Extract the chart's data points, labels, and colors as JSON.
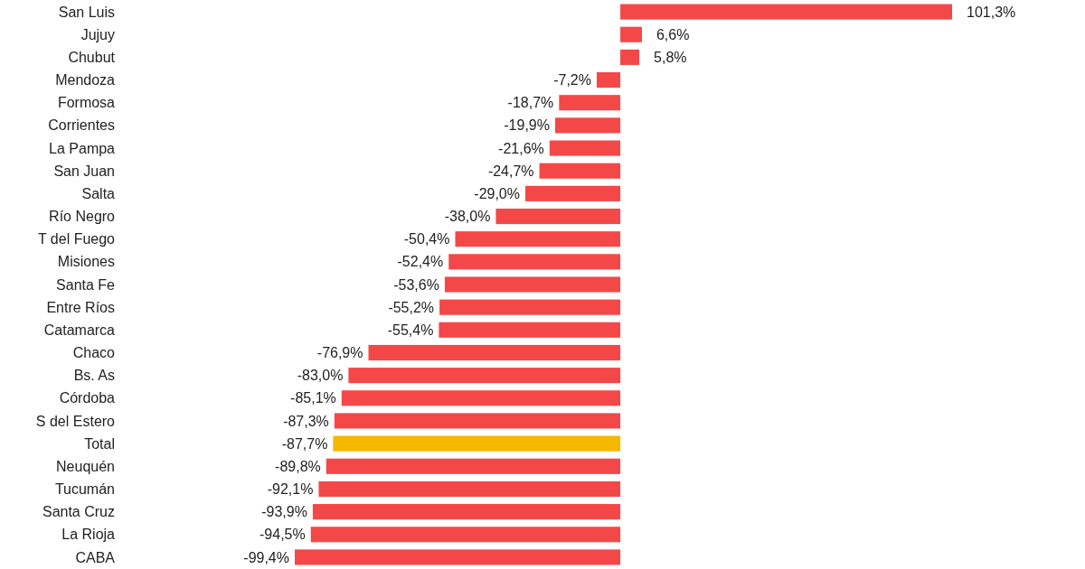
{
  "chart_data": {
    "type": "bar",
    "orientation": "horizontal",
    "categories": [
      "San Luis",
      "Jujuy",
      "Chubut",
      "Mendoza",
      "Formosa",
      "Corrientes",
      "La Pampa",
      "San Juan",
      "Salta",
      "Río Negro",
      "T del Fuego",
      "Misiones",
      "Santa Fe",
      "Entre Ríos",
      "Catamarca",
      "Chaco",
      "Bs. As",
      "Córdoba",
      "S del Estero",
      "Total",
      "Neuquén",
      "Tucumán",
      "Santa Cruz",
      "La Rioja",
      "CABA"
    ],
    "values": [
      101.3,
      6.6,
      5.8,
      -7.2,
      -18.7,
      -19.9,
      -21.6,
      -24.7,
      -29.0,
      -38.0,
      -50.4,
      -52.4,
      -53.6,
      -55.2,
      -55.4,
      -76.9,
      -83.0,
      -85.1,
      -87.3,
      -87.7,
      -89.8,
      -92.1,
      -93.9,
      -94.5,
      -99.4
    ],
    "value_labels": [
      "101,3%",
      "6,6%",
      "5,8%",
      "-7,2%",
      "-18,7%",
      "-19,9%",
      "-21,6%",
      "-24,7%",
      "-29,0%",
      "-38,0%",
      "-50,4%",
      "-52,4%",
      "-53,6%",
      "-55,2%",
      "-55,4%",
      "-76,9%",
      "-83,0%",
      "-85,1%",
      "-87,3%",
      "-87,7%",
      "-89,8%",
      "-92,1%",
      "-93,9%",
      "-94,5%",
      "-99,4%"
    ],
    "colors": [
      "#f44848",
      "#f44848",
      "#f44848",
      "#f44848",
      "#f44848",
      "#f44848",
      "#f44848",
      "#f44848",
      "#f44848",
      "#f44848",
      "#f44848",
      "#f44848",
      "#f44848",
      "#f44848",
      "#f44848",
      "#f44848",
      "#f44848",
      "#f44848",
      "#f44848",
      "#f5b700",
      "#f44848",
      "#f44848",
      "#f44848",
      "#f44848",
      "#f44848"
    ]
  }
}
